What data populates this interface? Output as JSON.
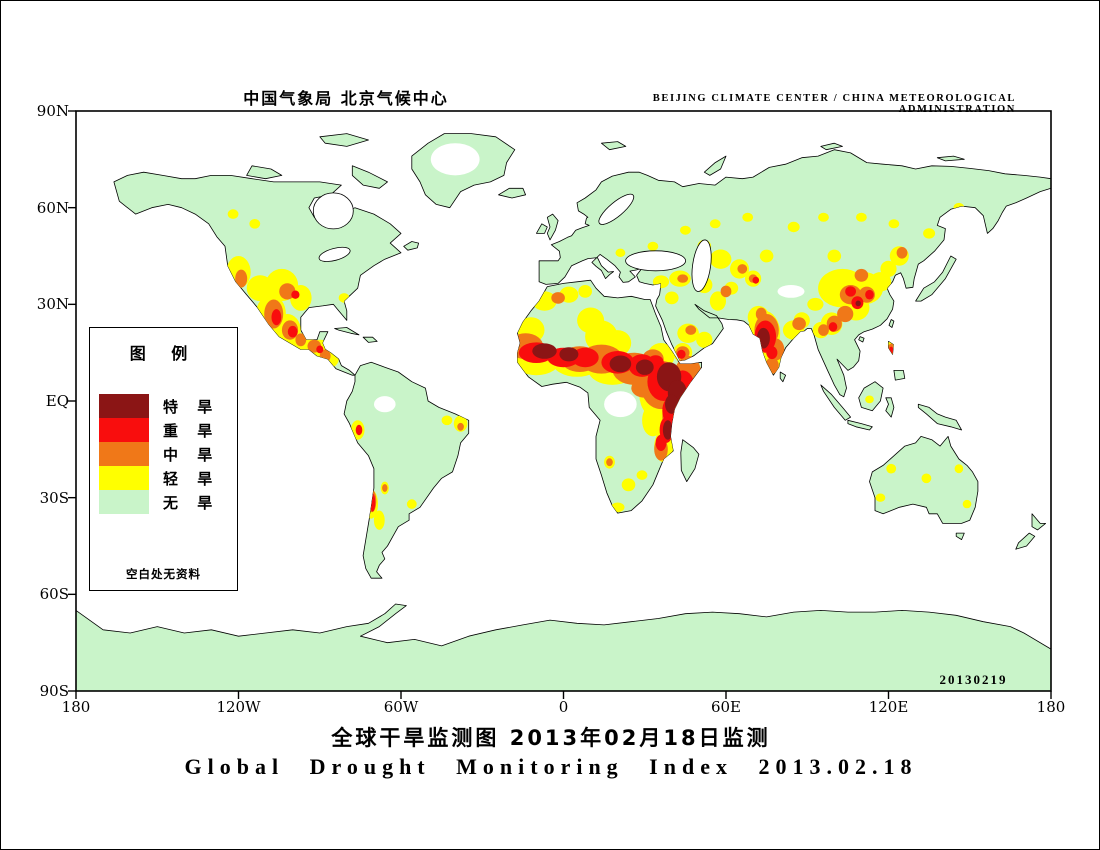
{
  "header": {
    "left": "中国气象局  北京气候中心",
    "right": "BEIJING CLIMATE CENTER / CHINA METEOROLOGICAL ADMINISTRATION"
  },
  "titles": {
    "chinese": "全球干旱监测图   2013年02月18日监测",
    "english": "Global Drought Monitoring Index  2013.02.18"
  },
  "legend": {
    "title": "图 例",
    "note": "空白处无资料",
    "items": [
      {
        "label": "特 旱",
        "level": "extreme",
        "color": "#8b1515"
      },
      {
        "label": "重 旱",
        "level": "severe",
        "color": "#f90d0d"
      },
      {
        "label": "中 旱",
        "level": "moderate",
        "color": "#f07818"
      },
      {
        "label": "轻 旱",
        "level": "light",
        "color": "#ffff00"
      },
      {
        "label": "无 旱",
        "level": "none",
        "color": "#c9f4c9"
      }
    ]
  },
  "map": {
    "date_stamp": "20130219",
    "axes": {
      "lat": [
        "90N",
        "60N",
        "30N",
        "EQ",
        "30S",
        "60S",
        "90S"
      ],
      "lon": [
        "180",
        "120W",
        "60W",
        "0",
        "60E",
        "120E",
        "180"
      ]
    },
    "no_data_patches": [
      [
        -40,
        75,
        9,
        5
      ],
      [
        21,
        -1,
        6,
        4
      ],
      [
        -66,
        -1,
        4,
        2.5
      ],
      [
        84,
        34,
        5,
        2
      ]
    ],
    "drought_spots": [
      [
        -120,
        40,
        4.5,
        5,
        "light"
      ],
      [
        -112,
        35,
        5,
        4,
        "light"
      ],
      [
        -104,
        36,
        6,
        5,
        "light"
      ],
      [
        -97,
        32,
        4,
        4,
        "light"
      ],
      [
        -108,
        27,
        5.5,
        6,
        "light"
      ],
      [
        -102,
        22,
        5,
        5,
        "light"
      ],
      [
        -96,
        18,
        4,
        3,
        "light"
      ],
      [
        -90,
        16,
        4,
        3,
        "light"
      ],
      [
        -86,
        13,
        3,
        2.5,
        "light"
      ],
      [
        -81,
        32,
        2,
        1.5,
        "light"
      ],
      [
        -122,
        58,
        2,
        1.5,
        "light"
      ],
      [
        -114,
        55,
        2,
        1.5,
        "light"
      ],
      [
        -76,
        -9,
        2.5,
        3,
        "light"
      ],
      [
        -43,
        -6,
        2,
        1.5,
        "light"
      ],
      [
        -38,
        -7,
        2.5,
        2.5,
        "light"
      ],
      [
        -71,
        -32,
        2.5,
        4.5,
        "light"
      ],
      [
        -68,
        -37,
        2,
        3,
        "light"
      ],
      [
        -66,
        -27,
        1.5,
        2,
        "light"
      ],
      [
        -56,
        -32,
        1.8,
        1.5,
        "light"
      ],
      [
        -7,
        31,
        4.5,
        3,
        "light"
      ],
      [
        2,
        33,
        3.5,
        2.5,
        "light"
      ],
      [
        8,
        34,
        2.5,
        2,
        "light"
      ],
      [
        -12,
        22,
        5,
        4,
        "light"
      ],
      [
        10,
        25,
        5,
        4,
        "light"
      ],
      [
        14,
        20,
        6,
        5,
        "light"
      ],
      [
        20,
        18,
        5,
        4,
        "light"
      ],
      [
        -10,
        13,
        9,
        5,
        "light"
      ],
      [
        5,
        12,
        9,
        4.5,
        "light"
      ],
      [
        18,
        10,
        9,
        5,
        "light"
      ],
      [
        30,
        9,
        8,
        5,
        "light"
      ],
      [
        36,
        14,
        5,
        4,
        "light"
      ],
      [
        36,
        2,
        8,
        8,
        "light"
      ],
      [
        44,
        0,
        6,
        7,
        "light"
      ],
      [
        33,
        -6,
        4,
        5,
        "light"
      ],
      [
        37,
        -14,
        3.5,
        5,
        "light"
      ],
      [
        17,
        -19,
        2,
        2,
        "light"
      ],
      [
        24,
        -26,
        2.5,
        2,
        "light"
      ],
      [
        29,
        -23,
        2,
        1.5,
        "light"
      ],
      [
        20,
        -33,
        2.5,
        1.5,
        "light"
      ],
      [
        46,
        21,
        4,
        3,
        "light"
      ],
      [
        52,
        19,
        3,
        2.5,
        "light"
      ],
      [
        44,
        15,
        3.5,
        3,
        "light"
      ],
      [
        36,
        37,
        3,
        2,
        "light"
      ],
      [
        43,
        38,
        4,
        2.5,
        "light"
      ],
      [
        52,
        36,
        3,
        2.5,
        "light"
      ],
      [
        57,
        31,
        3,
        3,
        "light"
      ],
      [
        40,
        32,
        2.5,
        2,
        "light"
      ],
      [
        58,
        44,
        4,
        3,
        "light"
      ],
      [
        65,
        41,
        3.5,
        3,
        "light"
      ],
      [
        70,
        38,
        3,
        2.5,
        "light"
      ],
      [
        52,
        48,
        2.5,
        2,
        "light"
      ],
      [
        75,
        45,
        2.5,
        2,
        "light"
      ],
      [
        62,
        35,
        2.5,
        2,
        "light"
      ],
      [
        74,
        21,
        6,
        7,
        "light"
      ],
      [
        77,
        13,
        4,
        4.5,
        "light"
      ],
      [
        72,
        26,
        4,
        3.5,
        "light"
      ],
      [
        85,
        22,
        4,
        3,
        "light"
      ],
      [
        88,
        25,
        3,
        2.5,
        "light"
      ],
      [
        103,
        35,
        9,
        6,
        "light"
      ],
      [
        111,
        35,
        7,
        5,
        "light"
      ],
      [
        108,
        29,
        5,
        4,
        "light"
      ],
      [
        99,
        24,
        4,
        3.5,
        "light"
      ],
      [
        95,
        22,
        3,
        2.5,
        "light"
      ],
      [
        117,
        37,
        4,
        3,
        "light"
      ],
      [
        120,
        41,
        3,
        2.5,
        "light"
      ],
      [
        124,
        45,
        3.5,
        3,
        "light"
      ],
      [
        93,
        30,
        3,
        2,
        "light"
      ],
      [
        100,
        45,
        2.5,
        2,
        "light"
      ],
      [
        21,
        46,
        1.8,
        1.3,
        "light"
      ],
      [
        33,
        48,
        2,
        1.4,
        "light"
      ],
      [
        45,
        53,
        2,
        1.4,
        "light"
      ],
      [
        56,
        55,
        2,
        1.4,
        "light"
      ],
      [
        68,
        57,
        2,
        1.4,
        "light"
      ],
      [
        85,
        54,
        2.2,
        1.6,
        "light"
      ],
      [
        96,
        57,
        2,
        1.4,
        "light"
      ],
      [
        110,
        57,
        2,
        1.4,
        "light"
      ],
      [
        122,
        55,
        2,
        1.4,
        "light"
      ],
      [
        135,
        52,
        2.2,
        1.6,
        "light"
      ],
      [
        146,
        60,
        2,
        1.5,
        "light"
      ],
      [
        121,
        -21,
        1.8,
        1.5,
        "light"
      ],
      [
        117,
        -30,
        1.8,
        1.3,
        "light"
      ],
      [
        134,
        -24,
        1.8,
        1.5,
        "light"
      ],
      [
        146,
        -21,
        1.6,
        1.4,
        "light"
      ],
      [
        149,
        -32,
        1.6,
        1.3,
        "light"
      ],
      [
        113,
        0.5,
        1.6,
        1.2,
        "light"
      ],
      [
        121,
        16,
        2,
        2.5,
        "light"
      ],
      [
        -119,
        38,
        2.2,
        2.8,
        "moderate"
      ],
      [
        -102,
        34,
        3,
        2.5,
        "moderate"
      ],
      [
        -107,
        27,
        3.5,
        4.5,
        "moderate"
      ],
      [
        -101,
        22,
        3,
        3,
        "moderate"
      ],
      [
        -97,
        19,
        2,
        2,
        "moderate"
      ],
      [
        -92,
        17,
        2.5,
        2,
        "moderate"
      ],
      [
        -88,
        14,
        2,
        2,
        "moderate"
      ],
      [
        -38,
        -8,
        1.2,
        1.2,
        "moderate"
      ],
      [
        -66,
        -27,
        1,
        1.2,
        "moderate"
      ],
      [
        -70.7,
        -31,
        1.6,
        3.5,
        "moderate"
      ],
      [
        -2,
        32,
        2.5,
        1.8,
        "moderate"
      ],
      [
        -14,
        17,
        6.5,
        4,
        "moderate"
      ],
      [
        6,
        13,
        7,
        4,
        "moderate"
      ],
      [
        14,
        13,
        8,
        4.5,
        "moderate"
      ],
      [
        26,
        10,
        8,
        5,
        "moderate"
      ],
      [
        33,
        13,
        4,
        3,
        "moderate"
      ],
      [
        36,
        5,
        7.5,
        7.5,
        "moderate"
      ],
      [
        46,
        8,
        5,
        6,
        "moderate"
      ],
      [
        40,
        -5,
        3.5,
        6,
        "moderate"
      ],
      [
        36,
        -15,
        2.5,
        3.5,
        "moderate"
      ],
      [
        30,
        4,
        5,
        3,
        "moderate"
      ],
      [
        17,
        -19,
        1.2,
        1.2,
        "moderate"
      ],
      [
        44,
        15,
        2.5,
        2,
        "moderate"
      ],
      [
        47,
        22,
        2,
        1.5,
        "moderate"
      ],
      [
        44,
        38,
        2,
        1.3,
        "moderate"
      ],
      [
        60,
        34,
        2,
        1.8,
        "moderate"
      ],
      [
        66,
        41,
        1.8,
        1.5,
        "moderate"
      ],
      [
        70,
        38,
        1.6,
        1.3,
        "moderate"
      ],
      [
        75,
        22,
        4.5,
        5,
        "moderate"
      ],
      [
        78,
        16,
        3.5,
        3.5,
        "moderate"
      ],
      [
        77,
        11,
        2.5,
        2.5,
        "moderate"
      ],
      [
        87,
        24,
        2.5,
        2,
        "moderate"
      ],
      [
        73,
        27,
        2,
        2,
        "moderate"
      ],
      [
        106,
        33,
        4,
        3,
        "moderate"
      ],
      [
        112,
        33,
        3,
        2.5,
        "moderate"
      ],
      [
        104,
        27,
        3,
        2.5,
        "moderate"
      ],
      [
        100,
        24,
        2.8,
        2.5,
        "moderate"
      ],
      [
        96,
        22,
        2,
        1.8,
        "moderate"
      ],
      [
        125,
        46,
        2,
        1.8,
        "moderate"
      ],
      [
        110,
        39,
        2.5,
        2,
        "moderate"
      ],
      [
        121,
        16,
        1.3,
        1.8,
        "moderate"
      ],
      [
        -99,
        33,
        1.5,
        1.3,
        "severe"
      ],
      [
        -106,
        26,
        1.8,
        2.5,
        "severe"
      ],
      [
        -100,
        21.5,
        1.8,
        1.8,
        "severe"
      ],
      [
        -90,
        16,
        1.3,
        1.2,
        "severe"
      ],
      [
        -75.5,
        -9,
        1.2,
        1.6,
        "severe"
      ],
      [
        -70.5,
        -31.5,
        1,
        2.8,
        "severe"
      ],
      [
        -10,
        15,
        6.5,
        3.2,
        "severe"
      ],
      [
        0,
        13.5,
        6,
        3,
        "severe"
      ],
      [
        8,
        13.5,
        5,
        3,
        "severe"
      ],
      [
        20,
        12,
        6,
        3.5,
        "severe"
      ],
      [
        29,
        11,
        5,
        3.5,
        "severe"
      ],
      [
        34,
        12,
        3,
        2.2,
        "severe"
      ],
      [
        37,
        6,
        6,
        6,
        "severe"
      ],
      [
        44,
        4,
        4.5,
        5.5,
        "severe"
      ],
      [
        40,
        -3,
        3.5,
        4.5,
        "severe"
      ],
      [
        38,
        -9,
        2.5,
        4,
        "severe"
      ],
      [
        36,
        -13,
        2,
        2.5,
        "severe"
      ],
      [
        43.5,
        14.5,
        1.6,
        1.4,
        "severe"
      ],
      [
        71,
        37.5,
        1.2,
        1.1,
        "severe"
      ],
      [
        74.5,
        20,
        4,
        5,
        "severe"
      ],
      [
        77,
        15,
        2,
        2,
        "severe"
      ],
      [
        108.5,
        30.5,
        2.2,
        2,
        "severe"
      ],
      [
        106,
        34,
        2,
        1.6,
        "severe"
      ],
      [
        113,
        33,
        1.6,
        1.5,
        "severe"
      ],
      [
        99.5,
        23,
        1.6,
        1.5,
        "severe"
      ],
      [
        121,
        15.8,
        0.8,
        1.1,
        "severe"
      ],
      [
        -7,
        15.5,
        4.5,
        2.4,
        "extreme"
      ],
      [
        2,
        14.5,
        3.5,
        2.2,
        "extreme"
      ],
      [
        21,
        11.5,
        4,
        2.6,
        "extreme"
      ],
      [
        30,
        10.5,
        3.3,
        2.4,
        "extreme"
      ],
      [
        39,
        7.5,
        4.5,
        4.5,
        "extreme"
      ],
      [
        42,
        2.5,
        3.5,
        4,
        "extreme"
      ],
      [
        40,
        -1,
        2.5,
        3,
        "extreme"
      ],
      [
        38.5,
        -9,
        1.8,
        3,
        "extreme"
      ],
      [
        73.8,
        19.5,
        2.4,
        3.2,
        "extreme"
      ],
      [
        108.8,
        30.3,
        1,
        0.9,
        "extreme"
      ]
    ]
  }
}
